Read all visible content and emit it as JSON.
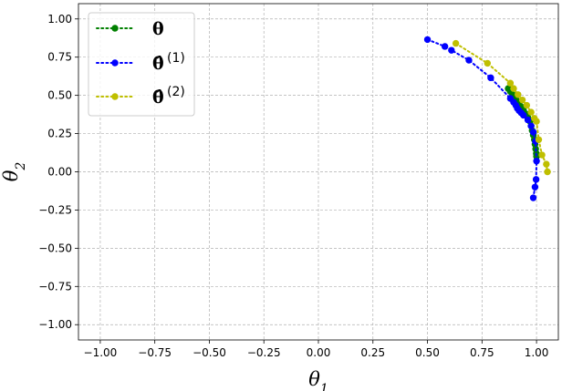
{
  "chart_data": {
    "type": "line",
    "xlabel": "θ",
    "xlabel_sub": "1",
    "ylabel": "θ",
    "ylabel_sub": "2",
    "xlim": [
      -1.1,
      1.1
    ],
    "ylim": [
      -1.1,
      1.1
    ],
    "xticks": [
      -1.0,
      -0.75,
      -0.5,
      -0.25,
      0.0,
      0.25,
      0.5,
      0.75,
      1.0
    ],
    "yticks": [
      -1.0,
      -0.75,
      -0.5,
      -0.25,
      0.0,
      0.25,
      0.5,
      0.75,
      1.0
    ],
    "xtick_labels": [
      "−1.00",
      "−0.75",
      "−0.50",
      "−0.25",
      "0.00",
      "0.25",
      "0.50",
      "0.75",
      "1.00"
    ],
    "ytick_labels": [
      "−1.00",
      "−0.75",
      "−0.50",
      "−0.25",
      "0.00",
      "0.25",
      "0.50",
      "0.75",
      "1.00"
    ],
    "grid": true,
    "legend_position": "top-left",
    "series": [
      {
        "name": "θ",
        "legend_label": "θ",
        "legend_sup": "",
        "hat": false,
        "color": "#008000",
        "linestyle": "dotted",
        "marker": "circle",
        "x": [
          0.87,
          0.88,
          0.89,
          0.9,
          0.91,
          0.92,
          0.93,
          0.94,
          0.95,
          0.96,
          0.97,
          0.975,
          0.98,
          0.985,
          0.99,
          0.993,
          0.996,
          0.999,
          1.0
        ],
        "y": [
          0.545,
          0.525,
          0.505,
          0.485,
          0.465,
          0.445,
          0.425,
          0.405,
          0.38,
          0.355,
          0.33,
          0.3,
          0.27,
          0.24,
          0.21,
          0.18,
          0.15,
          0.12,
          0.1
        ]
      },
      {
        "name": "θ̂(1)",
        "legend_label": "θ̂",
        "legend_sup": "(1)",
        "hat": true,
        "color": "#0000ff",
        "linestyle": "dotted",
        "marker": "circle",
        "x": [
          0.5,
          0.58,
          0.61,
          0.69,
          0.79,
          0.88,
          0.895,
          0.905,
          0.912,
          0.92,
          0.93,
          0.94,
          0.96,
          0.975,
          0.985,
          0.995,
          1.0,
          0.998,
          0.993,
          0.985
        ],
        "y": [
          0.865,
          0.82,
          0.795,
          0.73,
          0.615,
          0.48,
          0.455,
          0.435,
          0.415,
          0.4,
          0.385,
          0.37,
          0.34,
          0.3,
          0.26,
          0.2,
          0.07,
          -0.05,
          -0.1,
          -0.17
        ]
      },
      {
        "name": "θ̂(2)",
        "legend_label": "θ̂",
        "legend_sup": "(2)",
        "hat": true,
        "color": "#bfbf00",
        "linestyle": "dotted",
        "marker": "circle",
        "x": [
          0.63,
          0.775,
          0.88,
          0.895,
          0.915,
          0.935,
          0.955,
          0.975,
          0.99,
          1.0,
          1.01,
          1.025,
          1.045,
          1.05
        ],
        "y": [
          0.84,
          0.71,
          0.58,
          0.545,
          0.505,
          0.47,
          0.435,
          0.39,
          0.35,
          0.33,
          0.21,
          0.11,
          0.05,
          0.0
        ]
      }
    ]
  }
}
